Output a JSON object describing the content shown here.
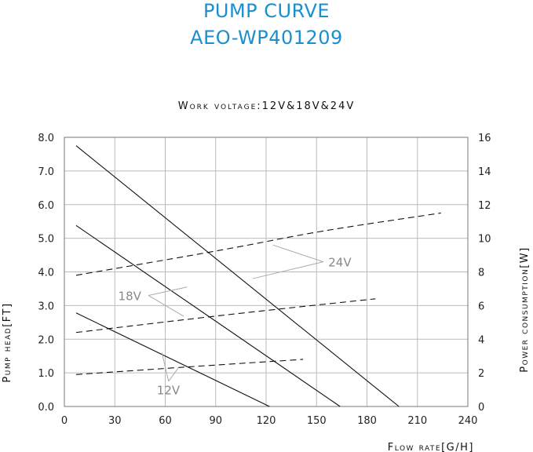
{
  "chart_data": {
    "type": "line",
    "title": "PUMP CURVE",
    "subtitle": "AEO-WP401209",
    "caption": "Work voltage:12V&18V&24V",
    "xlabel": "Flow rate[G/H]",
    "ylabel": "Pump head[FT]",
    "y2label": "Power consumption[W]",
    "xlim": [
      0,
      240
    ],
    "ylim": [
      0,
      8
    ],
    "y2lim": [
      0,
      16
    ],
    "xticks": [
      "0",
      "30",
      "60",
      "90",
      "120",
      "150",
      "180",
      "210",
      "240"
    ],
    "yticks": [
      "0.0",
      "1.0",
      "2.0",
      "3.0",
      "4.0",
      "5.0",
      "6.0",
      "7.0",
      "8.0"
    ],
    "y2ticks": [
      "0",
      "2",
      "4",
      "6",
      "8",
      "10",
      "12",
      "14",
      "16"
    ],
    "grid": true,
    "head_series": [
      {
        "voltage": "24V",
        "x": [
          7,
          199
        ],
        "y": [
          7.75,
          0.0
        ]
      },
      {
        "voltage": "18V",
        "x": [
          7,
          164
        ],
        "y": [
          5.38,
          0.0
        ]
      },
      {
        "voltage": "12V",
        "x": [
          7,
          122
        ],
        "y": [
          2.78,
          0.0
        ]
      }
    ],
    "power_series": [
      {
        "voltage": "24V",
        "x": [
          7,
          100,
          150,
          224
        ],
        "y": [
          7.8,
          9.4,
          10.4,
          11.5
        ]
      },
      {
        "voltage": "18V",
        "x": [
          7,
          100,
          185
        ],
        "y": [
          4.4,
          5.5,
          6.4
        ]
      },
      {
        "voltage": "12V",
        "x": [
          7,
          80,
          142
        ],
        "y": [
          1.9,
          2.4,
          2.8
        ]
      }
    ],
    "callouts": [
      "24V",
      "18V",
      "12V"
    ]
  },
  "colors": {
    "title": "#1a8fd0",
    "line": "#111111",
    "grid": "#bbbbbb",
    "callout": "#888888"
  }
}
